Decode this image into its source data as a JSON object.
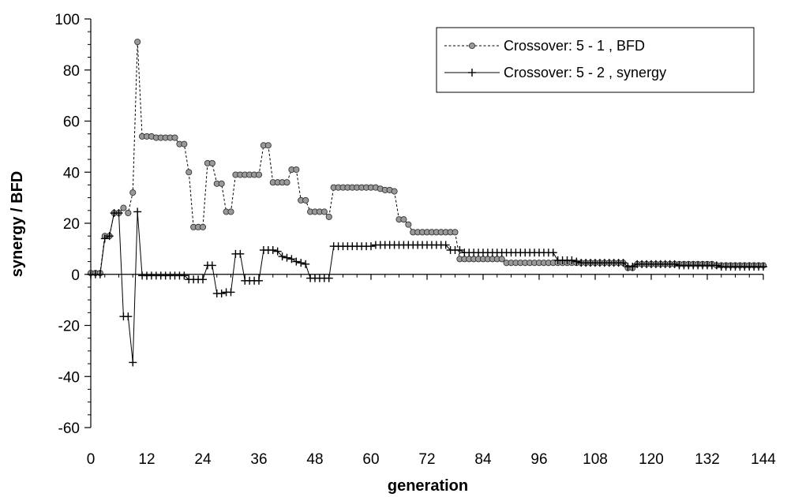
{
  "chart_data": {
    "type": "line",
    "title": "",
    "xlabel": "generation",
    "ylabel": "synergy / BFD",
    "xlim": [
      0,
      144
    ],
    "ylim": [
      -60,
      100
    ],
    "x_ticks": [
      "0",
      "12",
      "24",
      "36",
      "48",
      "60",
      "72",
      "84",
      "96",
      "108",
      "120",
      "132",
      "144"
    ],
    "y_ticks": [
      "100",
      "80",
      "60",
      "40",
      "20",
      "0",
      "-20",
      "-40",
      "-60"
    ],
    "legend_position": "top-right",
    "grid": false,
    "series": [
      {
        "name": "Crossover: 5 - 1 , BFD",
        "style": "dashed-circle",
        "color": "#000000",
        "marker_fill": "#9a9a9a",
        "points": [
          [
            0,
            0.5
          ],
          [
            1,
            0.5
          ],
          [
            2,
            0.5
          ],
          [
            3,
            15
          ],
          [
            4,
            15
          ],
          [
            5,
            24
          ],
          [
            6,
            24
          ],
          [
            7,
            26
          ],
          [
            8,
            24
          ],
          [
            9,
            32
          ],
          [
            10,
            91
          ],
          [
            11,
            54
          ],
          [
            12,
            54
          ],
          [
            13,
            54
          ],
          [
            14,
            53.5
          ],
          [
            15,
            53.5
          ],
          [
            16,
            53.5
          ],
          [
            17,
            53.5
          ],
          [
            18,
            53.5
          ],
          [
            19,
            51
          ],
          [
            20,
            51
          ],
          [
            21,
            40
          ],
          [
            22,
            18.5
          ],
          [
            23,
            18.5
          ],
          [
            24,
            18.5
          ],
          [
            25,
            43.5
          ],
          [
            26,
            43.5
          ],
          [
            27,
            35.5
          ],
          [
            28,
            35.5
          ],
          [
            29,
            24.5
          ],
          [
            30,
            24.5
          ],
          [
            31,
            39
          ],
          [
            32,
            39
          ],
          [
            33,
            39
          ],
          [
            34,
            39
          ],
          [
            35,
            39
          ],
          [
            36,
            39
          ],
          [
            37,
            50.5
          ],
          [
            38,
            50.5
          ],
          [
            39,
            36
          ],
          [
            40,
            36
          ],
          [
            41,
            36
          ],
          [
            42,
            36
          ],
          [
            43,
            41
          ],
          [
            44,
            41
          ],
          [
            45,
            29
          ],
          [
            46,
            29
          ],
          [
            47,
            24.5
          ],
          [
            48,
            24.5
          ],
          [
            49,
            24.5
          ],
          [
            50,
            24.5
          ],
          [
            51,
            22.5
          ],
          [
            52,
            34
          ],
          [
            53,
            34
          ],
          [
            54,
            34
          ],
          [
            55,
            34
          ],
          [
            56,
            34
          ],
          [
            57,
            34
          ],
          [
            58,
            34
          ],
          [
            59,
            34
          ],
          [
            60,
            34
          ],
          [
            61,
            34
          ],
          [
            62,
            33.5
          ],
          [
            63,
            33
          ],
          [
            64,
            33
          ],
          [
            65,
            32.5
          ],
          [
            66,
            21.5
          ],
          [
            67,
            21.5
          ],
          [
            68,
            19.5
          ],
          [
            69,
            16.5
          ],
          [
            70,
            16.5
          ],
          [
            71,
            16.5
          ],
          [
            72,
            16.5
          ],
          [
            73,
            16.5
          ],
          [
            74,
            16.5
          ],
          [
            75,
            16.5
          ],
          [
            76,
            16.5
          ],
          [
            77,
            16.5
          ],
          [
            78,
            16.5
          ],
          [
            79,
            6
          ],
          [
            80,
            6
          ],
          [
            81,
            6
          ],
          [
            82,
            6
          ],
          [
            83,
            6
          ],
          [
            84,
            6
          ],
          [
            85,
            6
          ],
          [
            86,
            6
          ],
          [
            87,
            6
          ],
          [
            88,
            6
          ],
          [
            89,
            4.5
          ],
          [
            90,
            4.5
          ],
          [
            91,
            4.5
          ],
          [
            92,
            4.5
          ],
          [
            93,
            4.5
          ],
          [
            94,
            4.5
          ],
          [
            95,
            4.5
          ],
          [
            96,
            4.5
          ],
          [
            97,
            4.5
          ],
          [
            98,
            4.5
          ],
          [
            99,
            4.5
          ],
          [
            100,
            4.5
          ],
          [
            101,
            4.5
          ],
          [
            102,
            4.5
          ],
          [
            103,
            4.5
          ],
          [
            104,
            4.5
          ],
          [
            105,
            4.5
          ],
          [
            106,
            4.5
          ],
          [
            107,
            4.5
          ],
          [
            108,
            4.5
          ],
          [
            109,
            4.5
          ],
          [
            110,
            4.5
          ],
          [
            111,
            4.5
          ],
          [
            112,
            4.5
          ],
          [
            113,
            4.5
          ],
          [
            114,
            4.5
          ],
          [
            115,
            2.5
          ],
          [
            116,
            2.5
          ],
          [
            117,
            4
          ],
          [
            118,
            4
          ],
          [
            119,
            4
          ],
          [
            120,
            4
          ],
          [
            121,
            4
          ],
          [
            122,
            4
          ],
          [
            123,
            4
          ],
          [
            124,
            4
          ],
          [
            125,
            4
          ],
          [
            126,
            4
          ],
          [
            127,
            4
          ],
          [
            128,
            4
          ],
          [
            129,
            4
          ],
          [
            130,
            4
          ],
          [
            131,
            4
          ],
          [
            132,
            4
          ],
          [
            133,
            4
          ],
          [
            134,
            3.5
          ],
          [
            135,
            3.5
          ],
          [
            136,
            3.5
          ],
          [
            137,
            3.5
          ],
          [
            138,
            3.5
          ],
          [
            139,
            3.5
          ],
          [
            140,
            3.5
          ],
          [
            141,
            3.5
          ],
          [
            142,
            3.5
          ],
          [
            143,
            3.5
          ],
          [
            144,
            3.5
          ]
        ]
      },
      {
        "name": "Crossover: 5 - 2 , synergy",
        "style": "solid-plus",
        "color": "#000000",
        "points": [
          [
            0,
            0
          ],
          [
            1,
            0
          ],
          [
            2,
            0
          ],
          [
            3,
            14
          ],
          [
            4,
            15
          ],
          [
            5,
            24
          ],
          [
            6,
            24
          ],
          [
            7,
            -16.5
          ],
          [
            8,
            -16.5
          ],
          [
            9,
            -34.5
          ],
          [
            10,
            24.5
          ],
          [
            11,
            -0.5
          ],
          [
            12,
            -0.5
          ],
          [
            13,
            -0.5
          ],
          [
            14,
            -0.5
          ],
          [
            15,
            -0.5
          ],
          [
            16,
            -0.5
          ],
          [
            17,
            -0.5
          ],
          [
            18,
            -0.5
          ],
          [
            19,
            -0.5
          ],
          [
            20,
            -0.5
          ],
          [
            21,
            -2
          ],
          [
            22,
            -2
          ],
          [
            23,
            -2
          ],
          [
            24,
            -2
          ],
          [
            25,
            3.5
          ],
          [
            26,
            3.5
          ],
          [
            27,
            -7.5
          ],
          [
            28,
            -7.5
          ],
          [
            29,
            -7
          ],
          [
            30,
            -7
          ],
          [
            31,
            8
          ],
          [
            32,
            8
          ],
          [
            33,
            -2.5
          ],
          [
            34,
            -2.5
          ],
          [
            35,
            -2.5
          ],
          [
            36,
            -2.5
          ],
          [
            37,
            9.5
          ],
          [
            38,
            9.5
          ],
          [
            39,
            9.5
          ],
          [
            40,
            9
          ],
          [
            41,
            7
          ],
          [
            42,
            6.5
          ],
          [
            43,
            6
          ],
          [
            44,
            5
          ],
          [
            45,
            4.5
          ],
          [
            46,
            4
          ],
          [
            47,
            -1.5
          ],
          [
            48,
            -1.5
          ],
          [
            49,
            -1.5
          ],
          [
            50,
            -1.5
          ],
          [
            51,
            -1.5
          ],
          [
            52,
            11
          ],
          [
            53,
            11
          ],
          [
            54,
            11
          ],
          [
            55,
            11
          ],
          [
            56,
            11
          ],
          [
            57,
            11
          ],
          [
            58,
            11
          ],
          [
            59,
            11
          ],
          [
            60,
            11
          ],
          [
            61,
            11.5
          ],
          [
            62,
            11.5
          ],
          [
            63,
            11.5
          ],
          [
            64,
            11.5
          ],
          [
            65,
            11.5
          ],
          [
            66,
            11.5
          ],
          [
            67,
            11.5
          ],
          [
            68,
            11.5
          ],
          [
            69,
            11.5
          ],
          [
            70,
            11.5
          ],
          [
            71,
            11.5
          ],
          [
            72,
            11.5
          ],
          [
            73,
            11.5
          ],
          [
            74,
            11.5
          ],
          [
            75,
            11.5
          ],
          [
            76,
            11.5
          ],
          [
            77,
            9.5
          ],
          [
            78,
            9.5
          ],
          [
            79,
            9.5
          ],
          [
            80,
            8.5
          ],
          [
            81,
            8.5
          ],
          [
            82,
            8.5
          ],
          [
            83,
            8.5
          ],
          [
            84,
            8.5
          ],
          [
            85,
            8.5
          ],
          [
            86,
            8.5
          ],
          [
            87,
            8.5
          ],
          [
            88,
            8.5
          ],
          [
            89,
            8.5
          ],
          [
            90,
            8.5
          ],
          [
            91,
            8.5
          ],
          [
            92,
            8.5
          ],
          [
            93,
            8.5
          ],
          [
            94,
            8.5
          ],
          [
            95,
            8.5
          ],
          [
            96,
            8.5
          ],
          [
            97,
            8.5
          ],
          [
            98,
            8.5
          ],
          [
            99,
            8.5
          ],
          [
            100,
            5.5
          ],
          [
            101,
            5.5
          ],
          [
            102,
            5.5
          ],
          [
            103,
            5.5
          ],
          [
            104,
            5
          ],
          [
            105,
            4.5
          ],
          [
            106,
            4.5
          ],
          [
            107,
            4.5
          ],
          [
            108,
            4.5
          ],
          [
            109,
            4.5
          ],
          [
            110,
            4.5
          ],
          [
            111,
            4.5
          ],
          [
            112,
            4.5
          ],
          [
            113,
            4.5
          ],
          [
            114,
            4.5
          ],
          [
            115,
            3
          ],
          [
            116,
            3
          ],
          [
            117,
            4
          ],
          [
            118,
            4
          ],
          [
            119,
            4
          ],
          [
            120,
            4
          ],
          [
            121,
            4
          ],
          [
            122,
            4
          ],
          [
            123,
            4
          ],
          [
            124,
            4
          ],
          [
            125,
            4
          ],
          [
            126,
            3.5
          ],
          [
            127,
            3.5
          ],
          [
            128,
            3.5
          ],
          [
            129,
            3.5
          ],
          [
            130,
            3.5
          ],
          [
            131,
            3.5
          ],
          [
            132,
            3.5
          ],
          [
            133,
            3.5
          ],
          [
            134,
            3.5
          ],
          [
            135,
            3
          ],
          [
            136,
            3
          ],
          [
            137,
            3
          ],
          [
            138,
            3
          ],
          [
            139,
            3
          ],
          [
            140,
            3
          ],
          [
            141,
            3
          ],
          [
            142,
            3
          ],
          [
            143,
            3
          ],
          [
            144,
            3
          ]
        ]
      }
    ]
  }
}
